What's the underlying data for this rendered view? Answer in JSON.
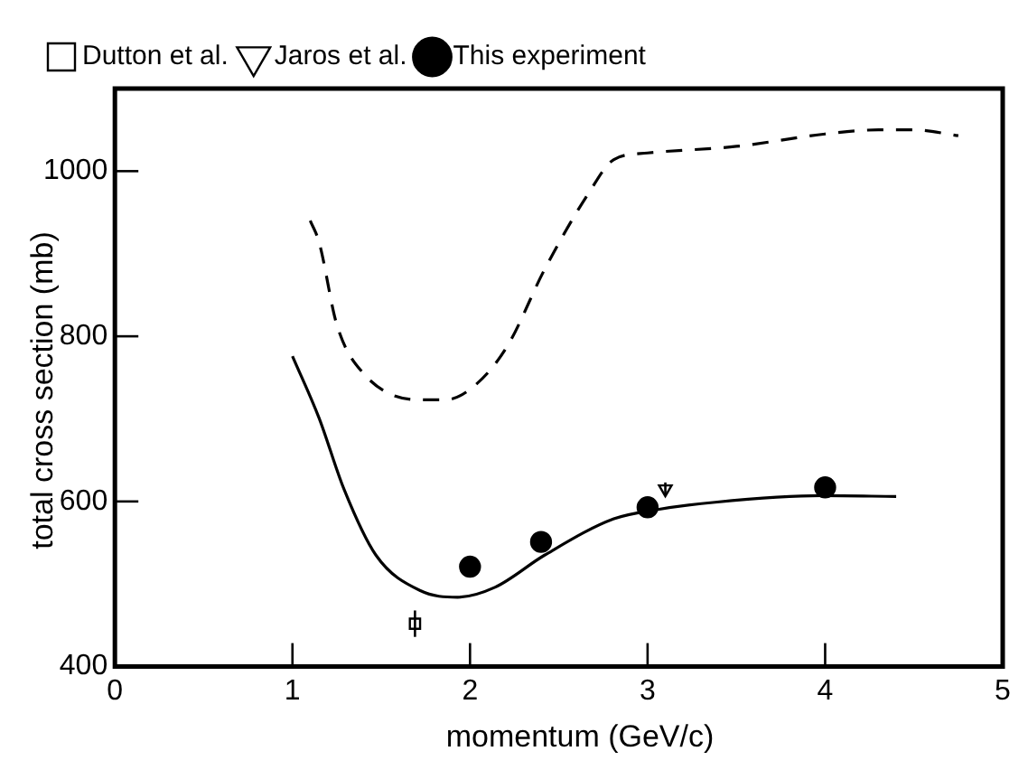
{
  "chart_data": {
    "type": "scatter",
    "xlabel": "momentum  (GeV/c)",
    "ylabel": "total cross section  (mb)",
    "xlim": [
      0,
      5
    ],
    "xticks": [
      0,
      1,
      2,
      3,
      4,
      5
    ],
    "ylim": [
      400,
      1100
    ],
    "yticks": [
      400,
      600,
      800,
      1000
    ],
    "grid": false,
    "legend": "top left",
    "series": [
      {
        "name": "Dutton et al.",
        "color": "#000000",
        "marker": "square",
        "x": [
          1.69
        ],
        "values": [
          452
        ],
        "errors": [
          16
        ]
      },
      {
        "name": "Jaros et al.",
        "color": "#000000",
        "marker": "triangle",
        "x": [
          3.1
        ],
        "values": [
          615
        ],
        "errors": [
          8
        ]
      },
      {
        "name": "This experiment",
        "color": "#000000",
        "marker": "circle",
        "x": [
          2.0,
          2.4,
          3.0,
          4.0
        ],
        "values": [
          521,
          551,
          593,
          617
        ]
      },
      {
        "type": "line",
        "color": "#000000",
        "line_style": "solid",
        "marker": "none",
        "x": [
          1.0,
          1.15,
          1.29,
          1.47,
          1.72,
          1.93,
          2.14,
          2.42,
          2.81,
          3.05,
          3.38,
          3.98,
          4.4
        ],
        "values": [
          776,
          701,
          615,
          535,
          492,
          484,
          496,
          535,
          579,
          590,
          599,
          607,
          606
        ]
      },
      {
        "type": "line",
        "color": "#000000",
        "line_style": "dashed",
        "marker": "none",
        "x": [
          1.1,
          1.15,
          1.25,
          1.4,
          1.72,
          1.86,
          2.03,
          2.21,
          2.42,
          2.67,
          2.81,
          3.0,
          3.5,
          4.0,
          4.3,
          4.5,
          4.75
        ],
        "values": [
          940,
          914,
          814,
          755,
          723,
          723,
          741,
          788,
          881,
          974,
          1014,
          1022,
          1030,
          1045,
          1050,
          1050,
          1043
        ]
      }
    ]
  }
}
